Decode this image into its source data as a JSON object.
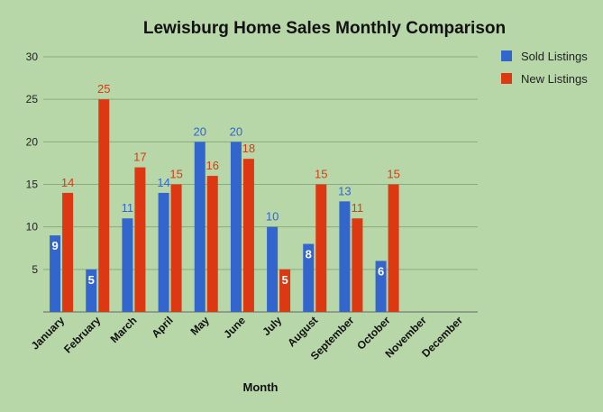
{
  "chart_data": {
    "type": "bar",
    "title": "Lewisburg Home Sales Monthly Comparison",
    "xlabel": "Month",
    "ylabel": "",
    "ylim": [
      0,
      30
    ],
    "yticks": [
      5,
      10,
      15,
      20,
      25,
      30
    ],
    "grid": true,
    "legend_position": "right",
    "categories": [
      "January",
      "February",
      "March",
      "April",
      "May",
      "June",
      "July",
      "August",
      "September",
      "October",
      "November",
      "December"
    ],
    "series": [
      {
        "name": "Sold Listings",
        "color": "#3366cc",
        "values": [
          9,
          5,
          11,
          14,
          20,
          20,
          10,
          8,
          13,
          6,
          null,
          null
        ]
      },
      {
        "name": "New Listings",
        "color": "#dc3912",
        "values": [
          14,
          25,
          17,
          15,
          16,
          18,
          5,
          15,
          11,
          15,
          null,
          null
        ]
      }
    ]
  }
}
